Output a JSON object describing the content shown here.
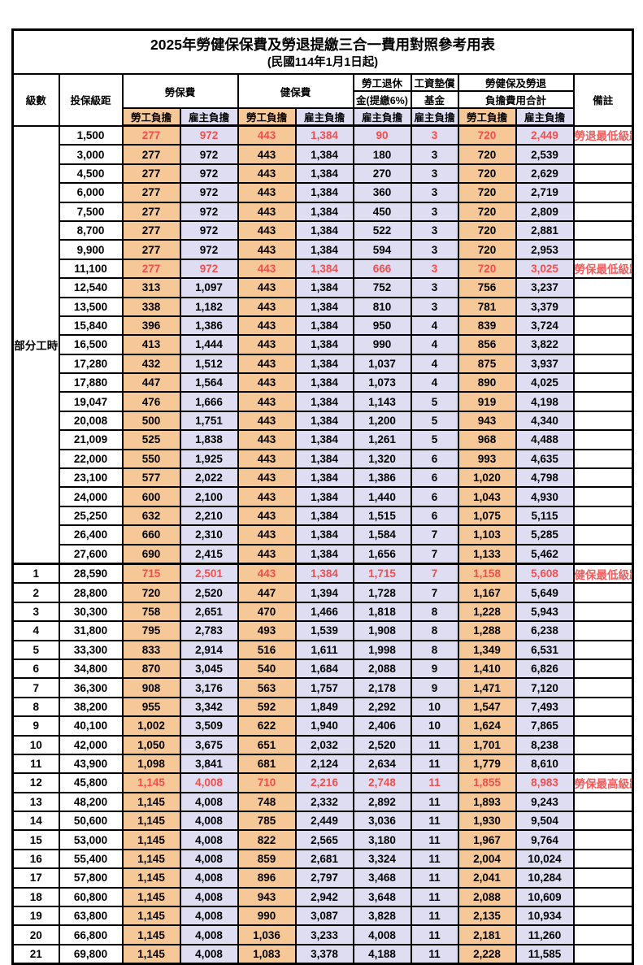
{
  "title": "2025年勞健保保費及勞退提繳三合一費用對照參考用表",
  "subtitle": "(民國114年1月1日起)",
  "header": {
    "level": "級數",
    "bracket": "投保級距",
    "labor_insurance": "勞保費",
    "health_insurance": "健保費",
    "pension_line1": "勞工退休",
    "pension_line2": "金(提繳6%)",
    "wage_fund_line1": "工資墊償",
    "wage_fund_line2": "基金",
    "total_line1": "勞健保及勞退",
    "total_line2": "負擔費用合計",
    "remark": "備註",
    "employee_burden": "勞工負擔",
    "employer_burden": "雇主負擔"
  },
  "part_time_label": "部分工時",
  "colors": {
    "employee_bg": "#F7C897",
    "employer_bg": "#DEDDF1",
    "highlight_text": "#F24E4E",
    "border": "#000000"
  },
  "rows": [
    [
      "",
      "1,500",
      "277",
      "972",
      "443",
      "1,384",
      "90",
      "3",
      "720",
      "2,449",
      "勞退最低級距",
      1
    ],
    [
      "",
      "3,000",
      "277",
      "972",
      "443",
      "1,384",
      "180",
      "3",
      "720",
      "2,539",
      "",
      0
    ],
    [
      "",
      "4,500",
      "277",
      "972",
      "443",
      "1,384",
      "270",
      "3",
      "720",
      "2,629",
      "",
      0
    ],
    [
      "",
      "6,000",
      "277",
      "972",
      "443",
      "1,384",
      "360",
      "3",
      "720",
      "2,719",
      "",
      0
    ],
    [
      "",
      "7,500",
      "277",
      "972",
      "443",
      "1,384",
      "450",
      "3",
      "720",
      "2,809",
      "",
      0
    ],
    [
      "",
      "8,700",
      "277",
      "972",
      "443",
      "1,384",
      "522",
      "3",
      "720",
      "2,881",
      "",
      0
    ],
    [
      "",
      "9,900",
      "277",
      "972",
      "443",
      "1,384",
      "594",
      "3",
      "720",
      "2,953",
      "",
      0
    ],
    [
      "",
      "11,100",
      "277",
      "972",
      "443",
      "1,384",
      "666",
      "3",
      "720",
      "3,025",
      "勞保最低級距",
      1
    ],
    [
      "",
      "12,540",
      "313",
      "1,097",
      "443",
      "1,384",
      "752",
      "3",
      "756",
      "3,237",
      "",
      0
    ],
    [
      "",
      "13,500",
      "338",
      "1,182",
      "443",
      "1,384",
      "810",
      "3",
      "781",
      "3,379",
      "",
      0
    ],
    [
      "",
      "15,840",
      "396",
      "1,386",
      "443",
      "1,384",
      "950",
      "4",
      "839",
      "3,724",
      "",
      0
    ],
    [
      "",
      "16,500",
      "413",
      "1,444",
      "443",
      "1,384",
      "990",
      "4",
      "856",
      "3,822",
      "",
      0
    ],
    [
      "",
      "17,280",
      "432",
      "1,512",
      "443",
      "1,384",
      "1,037",
      "4",
      "875",
      "3,937",
      "",
      0
    ],
    [
      "",
      "17,880",
      "447",
      "1,564",
      "443",
      "1,384",
      "1,073",
      "4",
      "890",
      "4,025",
      "",
      0
    ],
    [
      "",
      "19,047",
      "476",
      "1,666",
      "443",
      "1,384",
      "1,143",
      "5",
      "919",
      "4,198",
      "",
      0
    ],
    [
      "",
      "20,008",
      "500",
      "1,751",
      "443",
      "1,384",
      "1,200",
      "5",
      "943",
      "4,340",
      "",
      0
    ],
    [
      "",
      "21,009",
      "525",
      "1,838",
      "443",
      "1,384",
      "1,261",
      "5",
      "968",
      "4,488",
      "",
      0
    ],
    [
      "",
      "22,000",
      "550",
      "1,925",
      "443",
      "1,384",
      "1,320",
      "6",
      "993",
      "4,635",
      "",
      0
    ],
    [
      "",
      "23,100",
      "577",
      "2,022",
      "443",
      "1,384",
      "1,386",
      "6",
      "1,020",
      "4,798",
      "",
      0
    ],
    [
      "",
      "24,000",
      "600",
      "2,100",
      "443",
      "1,384",
      "1,440",
      "6",
      "1,043",
      "4,930",
      "",
      0
    ],
    [
      "",
      "25,250",
      "632",
      "2,210",
      "443",
      "1,384",
      "1,515",
      "6",
      "1,075",
      "5,115",
      "",
      0
    ],
    [
      "",
      "26,400",
      "660",
      "2,310",
      "443",
      "1,384",
      "1,584",
      "7",
      "1,103",
      "5,285",
      "",
      0
    ],
    [
      "",
      "27,600",
      "690",
      "2,415",
      "443",
      "1,384",
      "1,656",
      "7",
      "1,133",
      "5,462",
      "",
      0
    ],
    [
      "1",
      "28,590",
      "715",
      "2,501",
      "443",
      "1,384",
      "1,715",
      "7",
      "1,158",
      "5,608",
      "健保最低級距",
      1
    ],
    [
      "2",
      "28,800",
      "720",
      "2,520",
      "447",
      "1,394",
      "1,728",
      "7",
      "1,167",
      "5,649",
      "",
      0
    ],
    [
      "3",
      "30,300",
      "758",
      "2,651",
      "470",
      "1,466",
      "1,818",
      "8",
      "1,228",
      "5,943",
      "",
      0
    ],
    [
      "4",
      "31,800",
      "795",
      "2,783",
      "493",
      "1,539",
      "1,908",
      "8",
      "1,288",
      "6,238",
      "",
      0
    ],
    [
      "5",
      "33,300",
      "833",
      "2,914",
      "516",
      "1,611",
      "1,998",
      "8",
      "1,349",
      "6,531",
      "",
      0
    ],
    [
      "6",
      "34,800",
      "870",
      "3,045",
      "540",
      "1,684",
      "2,088",
      "9",
      "1,410",
      "6,826",
      "",
      0
    ],
    [
      "7",
      "36,300",
      "908",
      "3,176",
      "563",
      "1,757",
      "2,178",
      "9",
      "1,471",
      "7,120",
      "",
      0
    ],
    [
      "8",
      "38,200",
      "955",
      "3,342",
      "592",
      "1,849",
      "2,292",
      "10",
      "1,547",
      "7,493",
      "",
      0
    ],
    [
      "9",
      "40,100",
      "1,002",
      "3,509",
      "622",
      "1,940",
      "2,406",
      "10",
      "1,624",
      "7,865",
      "",
      0
    ],
    [
      "10",
      "42,000",
      "1,050",
      "3,675",
      "651",
      "2,032",
      "2,520",
      "11",
      "1,701",
      "8,238",
      "",
      0
    ],
    [
      "11",
      "43,900",
      "1,098",
      "3,841",
      "681",
      "2,124",
      "2,634",
      "11",
      "1,779",
      "8,610",
      "",
      0
    ],
    [
      "12",
      "45,800",
      "1,145",
      "4,008",
      "710",
      "2,216",
      "2,748",
      "11",
      "1,855",
      "8,983",
      "勞保最高級距",
      1
    ],
    [
      "13",
      "48,200",
      "1,145",
      "4,008",
      "748",
      "2,332",
      "2,892",
      "11",
      "1,893",
      "9,243",
      "",
      0
    ],
    [
      "14",
      "50,600",
      "1,145",
      "4,008",
      "785",
      "2,449",
      "3,036",
      "11",
      "1,930",
      "9,504",
      "",
      0
    ],
    [
      "15",
      "53,000",
      "1,145",
      "4,008",
      "822",
      "2,565",
      "3,180",
      "11",
      "1,967",
      "9,764",
      "",
      0
    ],
    [
      "16",
      "55,400",
      "1,145",
      "4,008",
      "859",
      "2,681",
      "3,324",
      "11",
      "2,004",
      "10,024",
      "",
      0
    ],
    [
      "17",
      "57,800",
      "1,145",
      "4,008",
      "896",
      "2,797",
      "3,468",
      "11",
      "2,041",
      "10,284",
      "",
      0
    ],
    [
      "18",
      "60,800",
      "1,145",
      "4,008",
      "943",
      "2,942",
      "3,648",
      "11",
      "2,088",
      "10,609",
      "",
      0
    ],
    [
      "19",
      "63,800",
      "1,145",
      "4,008",
      "990",
      "3,087",
      "3,828",
      "11",
      "2,135",
      "10,934",
      "",
      0
    ],
    [
      "20",
      "66,800",
      "1,145",
      "4,008",
      "1,036",
      "3,233",
      "4,008",
      "11",
      "2,181",
      "11,260",
      "",
      0
    ],
    [
      "21",
      "69,800",
      "1,145",
      "4,008",
      "1,083",
      "3,378",
      "4,188",
      "11",
      "2,228",
      "11,585",
      "",
      0
    ]
  ]
}
